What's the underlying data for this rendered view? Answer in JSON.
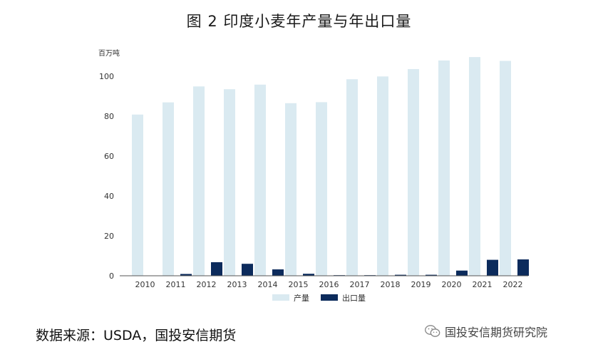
{
  "header": {
    "title": "图 2 印度小麦年产量与年出口量"
  },
  "footer": {
    "source": "数据来源：USDA，国投安信期货",
    "watermark": "国投安信期货研究院",
    "watermark_icon": "wechat-icon"
  },
  "colors": {
    "production": "#daeaf1",
    "export": "#0c2b5c",
    "axis": "#555555",
    "text": "#333333"
  },
  "chart_data": {
    "type": "bar",
    "unit_label": "百万吨",
    "categories": [
      "2010",
      "2011",
      "2012",
      "2013",
      "2014",
      "2015",
      "2016",
      "2017",
      "2018",
      "2019",
      "2020",
      "2021",
      "2022"
    ],
    "series": [
      {
        "name": "产量",
        "values": [
          80.8,
          86.9,
          94.9,
          93.5,
          95.8,
          86.5,
          87.0,
          98.5,
          99.9,
          103.6,
          107.9,
          109.6,
          107.7
        ]
      },
      {
        "name": "出口量",
        "values": [
          0.1,
          0.9,
          6.8,
          6.0,
          3.2,
          1.0,
          0.3,
          0.3,
          0.5,
          0.5,
          2.6,
          8.0,
          8.2
        ]
      }
    ],
    "ylim": [
      0,
      110
    ],
    "yticks": [
      0,
      20,
      40,
      60,
      80,
      100
    ],
    "legend": "bottom-center",
    "grid": false
  }
}
